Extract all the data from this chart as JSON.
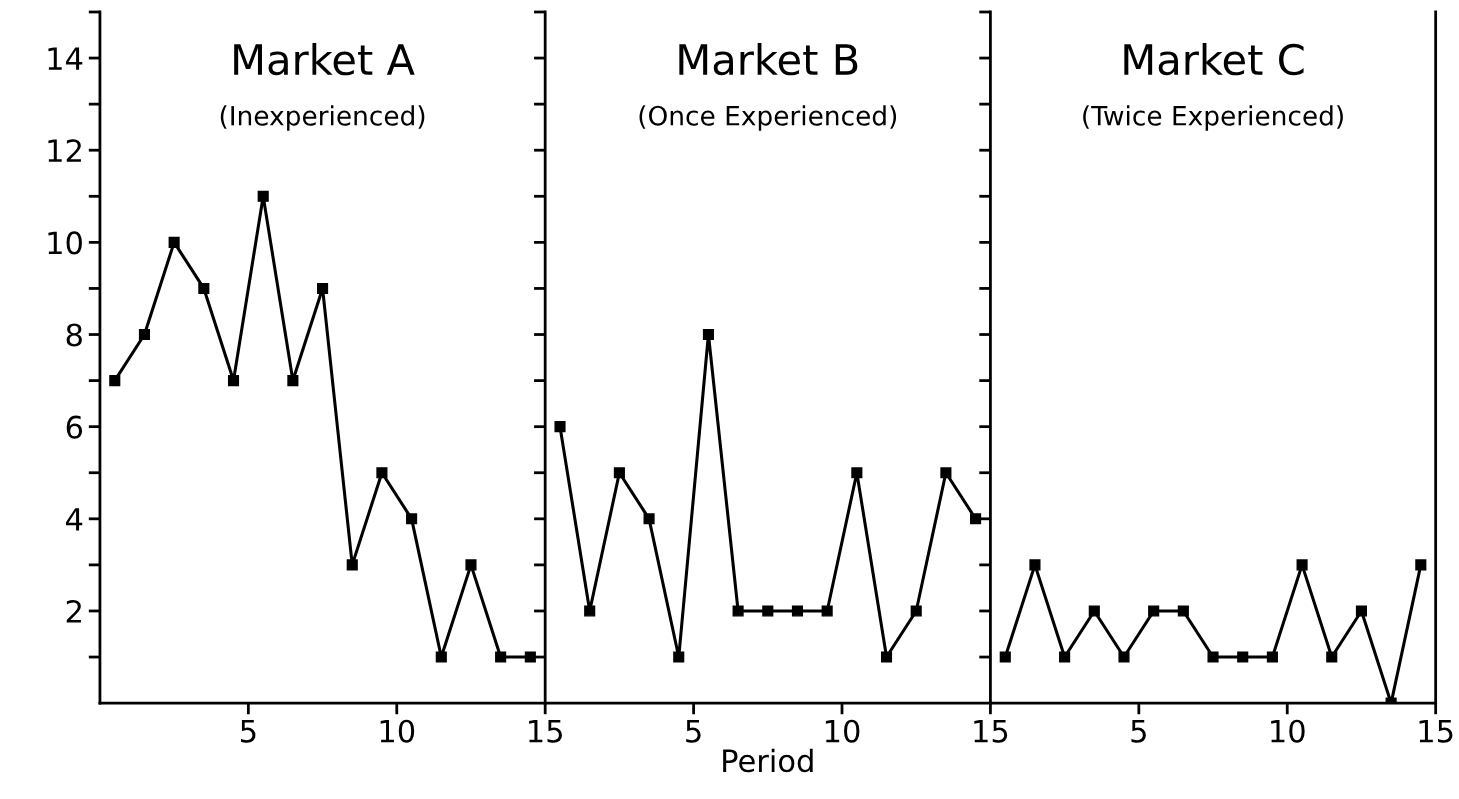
{
  "chart_data": [
    {
      "type": "line",
      "title": "Market A",
      "subtitle": "(Inexperienced)",
      "x": [
        0.5,
        1.5,
        2.5,
        3.5,
        4.5,
        5.5,
        6.5,
        7.5,
        8.5,
        9.5,
        10.5,
        11.5,
        12.5,
        13.5,
        14.5
      ],
      "values": [
        7,
        8,
        10,
        9,
        7,
        11,
        7,
        9,
        3,
        5,
        4,
        1,
        3,
        1,
        1
      ],
      "color": "#000000",
      "marker": "square",
      "line_style": "solid",
      "xlim": [
        0,
        15
      ],
      "xticks": [
        5,
        10,
        15
      ],
      "ylim": [
        0,
        15
      ],
      "yticks": [
        {
          "value": 1,
          "label": null
        },
        2,
        {
          "value": 3,
          "label": null
        },
        4,
        {
          "value": 5,
          "label": null
        },
        6,
        {
          "value": 7,
          "label": null
        },
        8,
        {
          "value": 9,
          "label": null
        },
        10,
        {
          "value": 11,
          "label": null
        },
        12,
        {
          "value": 13,
          "label": null
        },
        14,
        {
          "value": 15,
          "label": null
        }
      ]
    },
    {
      "type": "line",
      "title": "Market B",
      "subtitle": "(Once Experienced)",
      "xlabel": "Period",
      "x": [
        0.5,
        1.5,
        2.5,
        3.5,
        4.5,
        5.5,
        6.5,
        7.5,
        8.5,
        9.5,
        10.5,
        11.5,
        12.5,
        13.5,
        14.5
      ],
      "values": [
        6,
        2,
        5,
        4,
        1,
        8,
        2,
        2,
        2,
        2,
        5,
        1,
        2,
        5,
        4
      ],
      "color": "#000000",
      "marker": "square",
      "line_style": "solid",
      "xlim": [
        0,
        15
      ],
      "xticks": [
        5,
        10,
        15
      ],
      "ylim": [
        0,
        15
      ],
      "tick_labels": "x"
    },
    {
      "type": "line",
      "title": "Market C",
      "subtitle": "(Twice Experienced)",
      "x": [
        0.5,
        1.5,
        2.5,
        3.5,
        4.5,
        5.5,
        6.5,
        7.5,
        8.5,
        9.5,
        10.5,
        11.5,
        12.5,
        13.5,
        14.5
      ],
      "values": [
        1,
        3,
        1,
        2,
        1,
        2,
        2,
        1,
        1,
        1,
        3,
        1,
        2,
        0,
        3
      ],
      "color": "#000000",
      "marker": "square",
      "line_style": "solid",
      "xlim": [
        0,
        15
      ],
      "xticks": [
        5,
        10,
        15
      ],
      "ylim": [
        0,
        15
      ],
      "tick_labels": "x"
    }
  ]
}
